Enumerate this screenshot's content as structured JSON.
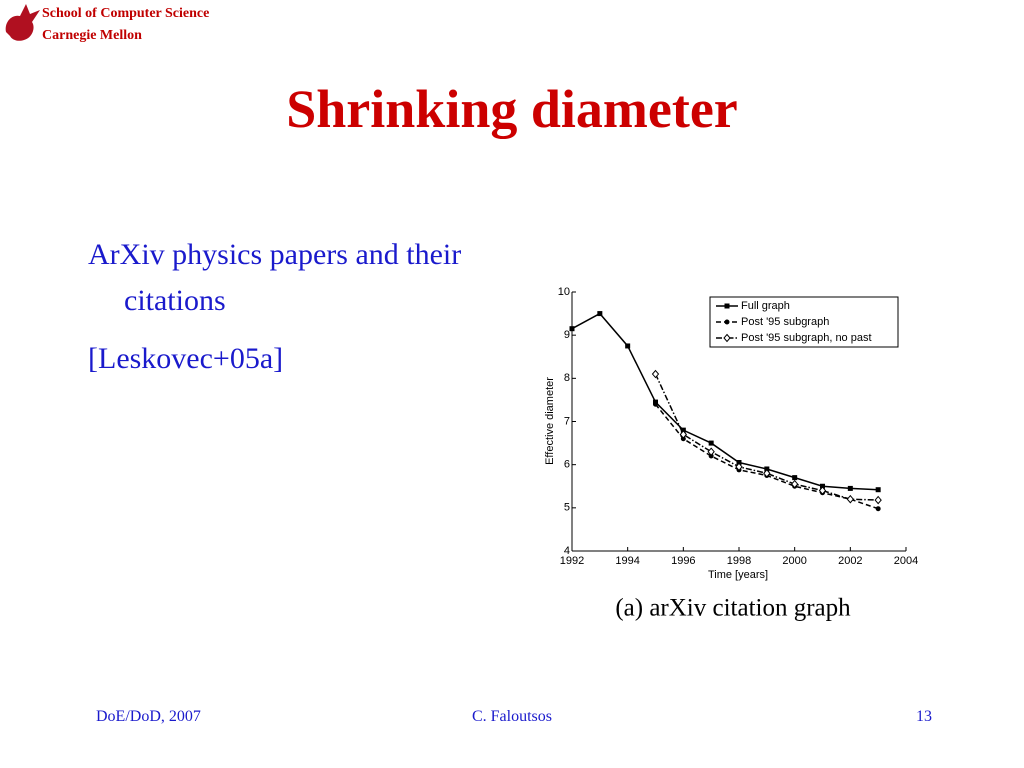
{
  "header": {
    "line1": "School of Computer Science",
    "line2": "Carnegie Mellon"
  },
  "title": "Shrinking diameter",
  "bullets": [
    "ArXiv physics papers and their citations",
    "[Leskovec+05a]"
  ],
  "chart_data": {
    "type": "line",
    "caption": "(a) arXiv citation graph",
    "x_label": "Time [years]",
    "y_label": "Effective diameter",
    "x": [
      1992,
      1993,
      1994,
      1995,
      1996,
      1997,
      1998,
      1999,
      2000,
      2001,
      2002,
      2003
    ],
    "series": [
      {
        "name": "Full graph",
        "color": "#000000",
        "marker": "square",
        "linestyle": "solid",
        "values": [
          9.15,
          9.5,
          8.75,
          7.45,
          6.8,
          6.5,
          6.05,
          5.9,
          5.7,
          5.5,
          5.45,
          5.42
        ]
      },
      {
        "name": "Post '95 subgraph",
        "color": "#000000",
        "marker": "circle",
        "linestyle": "dashed",
        "values": [
          null,
          null,
          null,
          7.4,
          6.6,
          6.2,
          5.88,
          5.75,
          5.5,
          5.35,
          5.2,
          4.98
        ]
      },
      {
        "name": "Post '95 subgraph, no past",
        "color": "#000000",
        "marker": "diamond",
        "linestyle": "dashdot",
        "values": [
          null,
          null,
          null,
          8.1,
          6.7,
          6.3,
          5.95,
          5.8,
          5.55,
          5.4,
          5.2,
          5.18
        ]
      }
    ],
    "xlim": [
      1992,
      2004
    ],
    "xticks": [
      1992,
      1994,
      1996,
      1998,
      2000,
      2002,
      2004
    ],
    "ylim": [
      4,
      10
    ],
    "yticks": [
      4,
      5,
      6,
      7,
      8,
      9,
      10
    ],
    "legend": "upper right"
  },
  "footer": {
    "left": "DoE/DoD, 2007",
    "center": "C. Faloutsos",
    "right": "13"
  }
}
